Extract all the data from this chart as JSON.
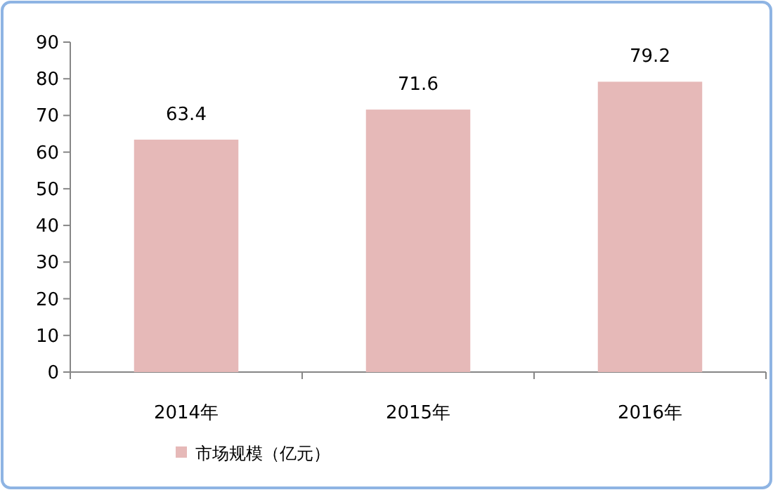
{
  "chart_data": {
    "type": "bar",
    "categories": [
      "2014年",
      "2015年",
      "2016年"
    ],
    "series": [
      {
        "name": "市场规模（亿元）",
        "color": "#e6b9b8",
        "values": [
          63.4,
          71.6,
          79.2
        ]
      }
    ],
    "ylim": [
      0,
      90
    ],
    "yticks": [
      0,
      10,
      20,
      30,
      40,
      50,
      60,
      70,
      80,
      90
    ],
    "data_labels": true,
    "legend": "bottom",
    "grid": false
  }
}
